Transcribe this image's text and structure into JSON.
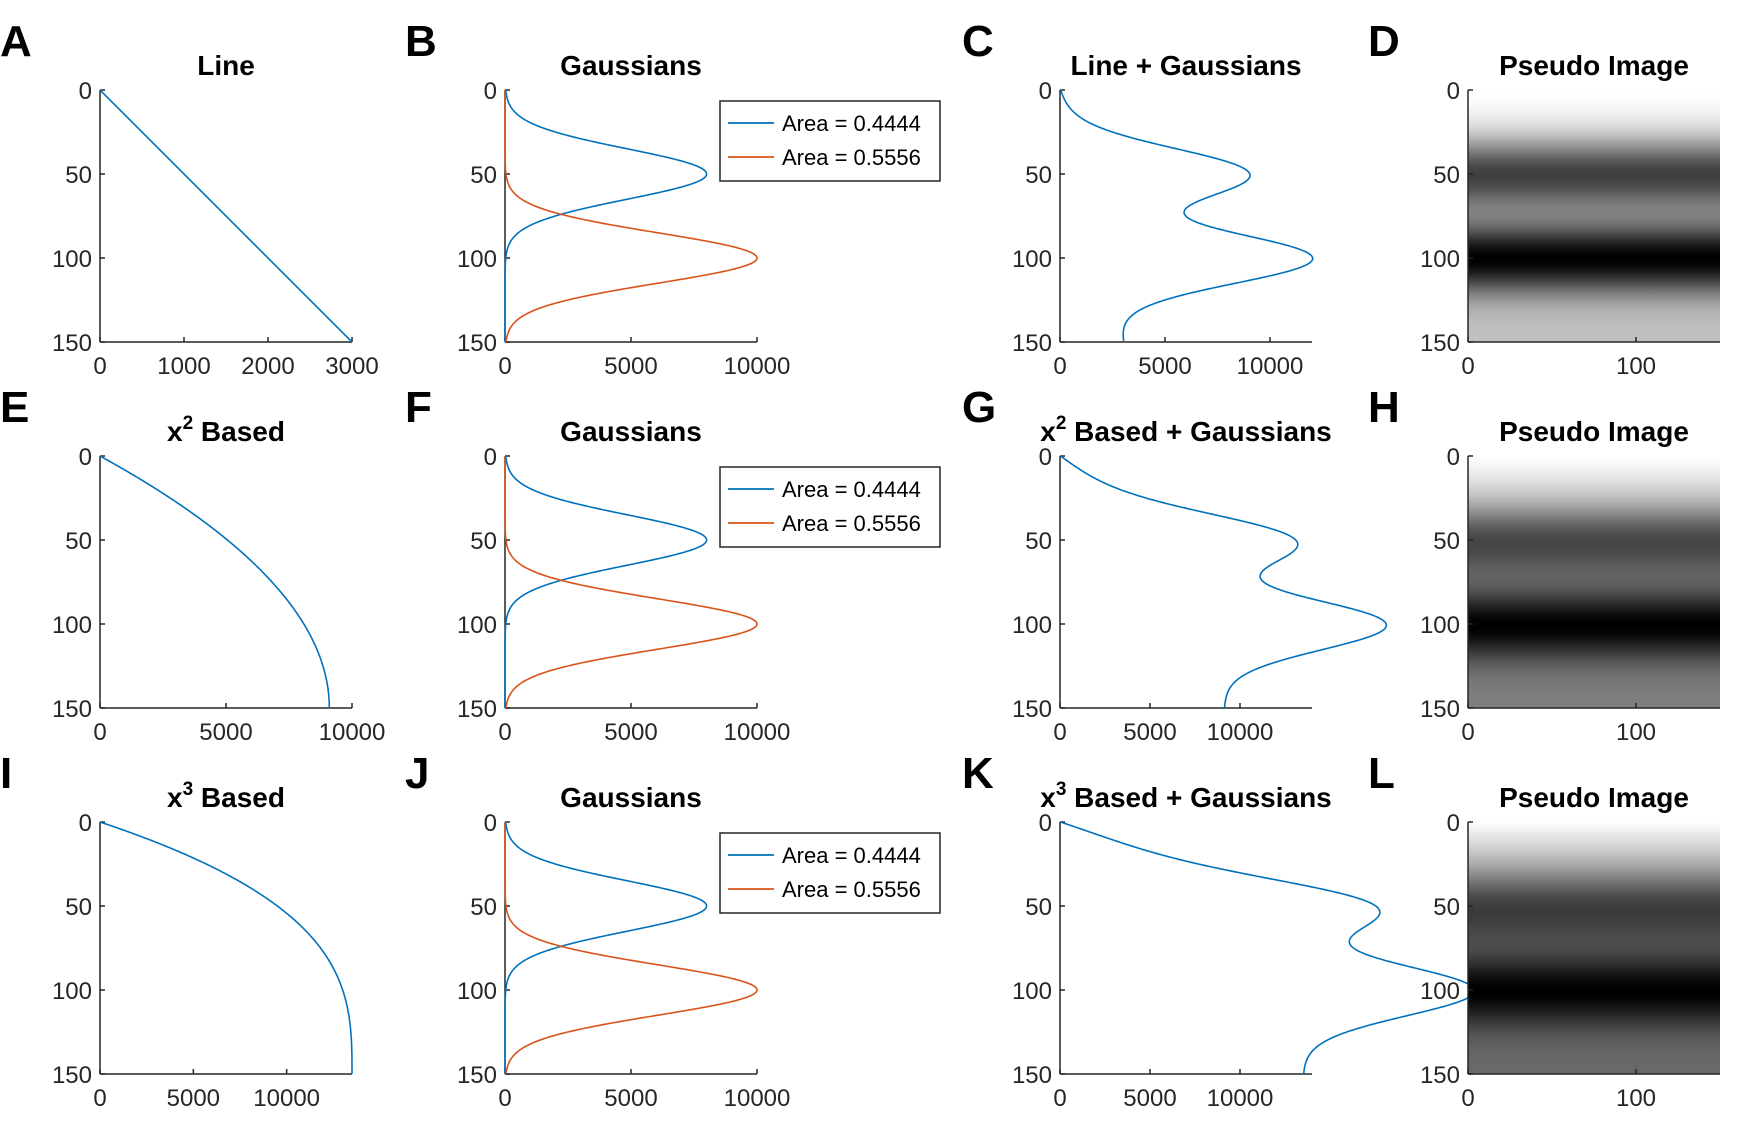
{
  "colors": {
    "blue": "#0072BD",
    "orange": "#D95319",
    "axis": "#262626"
  },
  "chart_data": [
    {
      "letter": "A",
      "type": "line",
      "title": "Line",
      "row": 0,
      "col": 0,
      "xlim": [
        0,
        3000
      ],
      "ylim": [
        0,
        150
      ],
      "y_reversed": true,
      "xticks": [
        0,
        1000,
        2000,
        3000
      ],
      "xtick_labels": [
        "0",
        "1000",
        "2000",
        "3000"
      ],
      "yticks": [
        0,
        50,
        100,
        150
      ],
      "ytick_labels": [
        "0",
        "50",
        "100",
        "150"
      ],
      "series": [
        {
          "color": "blue",
          "curve": "line",
          "xmax": 3000
        }
      ]
    },
    {
      "letter": "B",
      "type": "line",
      "title": "Gaussians",
      "row": 0,
      "col": 1,
      "xlim": [
        0,
        10000
      ],
      "ylim": [
        0,
        150
      ],
      "y_reversed": true,
      "xticks": [
        0,
        5000,
        10000
      ],
      "xtick_labels": [
        "0",
        "5000",
        "10000"
      ],
      "yticks": [
        0,
        50,
        100,
        150
      ],
      "ytick_labels": [
        "0",
        "50",
        "100",
        "150"
      ],
      "legend_position": "top-right",
      "series": [
        {
          "name": "Area = 0.4444",
          "color": "blue",
          "curve": "gaussian",
          "mu": 50,
          "sigma": 15,
          "amp": 8000
        },
        {
          "name": "Area = 0.5556",
          "color": "orange",
          "curve": "gaussian",
          "mu": 100,
          "sigma": 15,
          "amp": 10000
        }
      ]
    },
    {
      "letter": "C",
      "type": "line",
      "title": "Line + Gaussians",
      "row": 0,
      "col": 2,
      "xlim": [
        0,
        12000
      ],
      "ylim": [
        0,
        150
      ],
      "y_reversed": true,
      "xticks": [
        0,
        5000,
        10000
      ],
      "xtick_labels": [
        "0",
        "5000",
        "10000"
      ],
      "yticks": [
        0,
        50,
        100,
        150
      ],
      "ytick_labels": [
        "0",
        "50",
        "100",
        "150"
      ],
      "series": [
        {
          "color": "blue",
          "curve": "sum",
          "base": "line",
          "xmax": 3000
        }
      ]
    },
    {
      "letter": "D",
      "type": "heatmap",
      "title": "Pseudo Image",
      "row": 0,
      "col": 3,
      "xlim": [
        0,
        150
      ],
      "ylim": [
        0,
        150
      ],
      "y_reversed": true,
      "xticks": [
        0,
        100
      ],
      "xtick_labels": [
        "0",
        "100"
      ],
      "yticks": [
        0,
        50,
        100,
        150
      ],
      "ytick_labels": [
        "0",
        "50",
        "100",
        "150"
      ],
      "colormap": "gray-reversed",
      "source": "C"
    },
    {
      "letter": "E",
      "type": "line",
      "title_base": "x",
      "title_exp": "2",
      "title_rest": " Based",
      "row": 1,
      "col": 0,
      "xlim": [
        0,
        10000
      ],
      "ylim": [
        0,
        150
      ],
      "y_reversed": true,
      "xticks": [
        0,
        5000,
        10000
      ],
      "xtick_labels": [
        "0",
        "5000",
        "10000"
      ],
      "yticks": [
        0,
        50,
        100,
        150
      ],
      "ytick_labels": [
        "0",
        "50",
        "100",
        "150"
      ],
      "series": [
        {
          "color": "blue",
          "curve": "power",
          "p": 2,
          "xmax": 9100
        }
      ]
    },
    {
      "letter": "F",
      "type": "line",
      "title": "Gaussians",
      "row": 1,
      "col": 1,
      "xlim": [
        0,
        10000
      ],
      "ylim": [
        0,
        150
      ],
      "y_reversed": true,
      "xticks": [
        0,
        5000,
        10000
      ],
      "xtick_labels": [
        "0",
        "5000",
        "10000"
      ],
      "yticks": [
        0,
        50,
        100,
        150
      ],
      "ytick_labels": [
        "0",
        "50",
        "100",
        "150"
      ],
      "legend_position": "top-right",
      "series": [
        {
          "name": "Area = 0.4444",
          "color": "blue",
          "curve": "gaussian",
          "mu": 50,
          "sigma": 15,
          "amp": 8000
        },
        {
          "name": "Area = 0.5556",
          "color": "orange",
          "curve": "gaussian",
          "mu": 100,
          "sigma": 15,
          "amp": 10000
        }
      ]
    },
    {
      "letter": "G",
      "type": "line",
      "title_base": "x",
      "title_exp": "2",
      "title_rest": " Based + Gaussians",
      "row": 1,
      "col": 2,
      "xlim": [
        0,
        14000
      ],
      "ylim": [
        0,
        150
      ],
      "y_reversed": true,
      "xticks": [
        0,
        5000,
        10000
      ],
      "xtick_labels": [
        "0",
        "5000",
        "10000"
      ],
      "yticks": [
        0,
        50,
        100,
        150
      ],
      "ytick_labels": [
        "0",
        "50",
        "100",
        "150"
      ],
      "series": [
        {
          "color": "blue",
          "curve": "sum",
          "base": "power",
          "p": 2,
          "xmax": 9100
        }
      ]
    },
    {
      "letter": "H",
      "type": "heatmap",
      "title": "Pseudo Image",
      "row": 1,
      "col": 3,
      "xlim": [
        0,
        150
      ],
      "ylim": [
        0,
        150
      ],
      "y_reversed": true,
      "xticks": [
        0,
        100
      ],
      "xtick_labels": [
        "0",
        "100"
      ],
      "yticks": [
        0,
        50,
        100,
        150
      ],
      "ytick_labels": [
        "0",
        "50",
        "100",
        "150"
      ],
      "colormap": "gray-reversed",
      "source": "G"
    },
    {
      "letter": "I",
      "type": "line",
      "title_base": "x",
      "title_exp": "3",
      "title_rest": " Based",
      "row": 2,
      "col": 0,
      "xlim": [
        0,
        13500
      ],
      "ylim": [
        0,
        150
      ],
      "y_reversed": true,
      "xticks": [
        0,
        5000,
        10000
      ],
      "xtick_labels": [
        "0",
        "5000",
        "10000"
      ],
      "yticks": [
        0,
        50,
        100,
        150
      ],
      "ytick_labels": [
        "0",
        "50",
        "100",
        "150"
      ],
      "series": [
        {
          "color": "blue",
          "curve": "power",
          "p": 3,
          "xmax": 13500
        }
      ]
    },
    {
      "letter": "J",
      "type": "line",
      "title": "Gaussians",
      "row": 2,
      "col": 1,
      "xlim": [
        0,
        10000
      ],
      "ylim": [
        0,
        150
      ],
      "y_reversed": true,
      "xticks": [
        0,
        5000,
        10000
      ],
      "xtick_labels": [
        "0",
        "5000",
        "10000"
      ],
      "yticks": [
        0,
        50,
        100,
        150
      ],
      "ytick_labels": [
        "0",
        "50",
        "100",
        "150"
      ],
      "legend_position": "top-right",
      "series": [
        {
          "name": "Area = 0.4444",
          "color": "blue",
          "curve": "gaussian",
          "mu": 50,
          "sigma": 15,
          "amp": 8000
        },
        {
          "name": "Area = 0.5556",
          "color": "orange",
          "curve": "gaussian",
          "mu": 100,
          "sigma": 15,
          "amp": 10000
        }
      ]
    },
    {
      "letter": "K",
      "type": "line",
      "title_base": "x",
      "title_exp": "3",
      "title_rest": " Based + Gaussians",
      "row": 2,
      "col": 2,
      "xlim": [
        0,
        14000
      ],
      "ylim": [
        0,
        150
      ],
      "y_reversed": true,
      "xticks": [
        0,
        5000,
        10000
      ],
      "xtick_labels": [
        "0",
        "5000",
        "10000"
      ],
      "yticks": [
        0,
        50,
        100,
        150
      ],
      "ytick_labels": [
        "0",
        "50",
        "100",
        "150"
      ],
      "series": [
        {
          "color": "blue",
          "curve": "sum",
          "base": "power",
          "p": 3,
          "xmax": 13500
        }
      ]
    },
    {
      "letter": "L",
      "type": "heatmap",
      "title": "Pseudo Image",
      "row": 2,
      "col": 3,
      "xlim": [
        0,
        150
      ],
      "ylim": [
        0,
        150
      ],
      "y_reversed": true,
      "xticks": [
        0,
        100
      ],
      "xtick_labels": [
        "0",
        "100"
      ],
      "yticks": [
        0,
        50,
        100,
        150
      ],
      "ytick_labels": [
        "0",
        "50",
        "100",
        "150"
      ],
      "colormap": "gray-reversed",
      "source": "K"
    }
  ]
}
